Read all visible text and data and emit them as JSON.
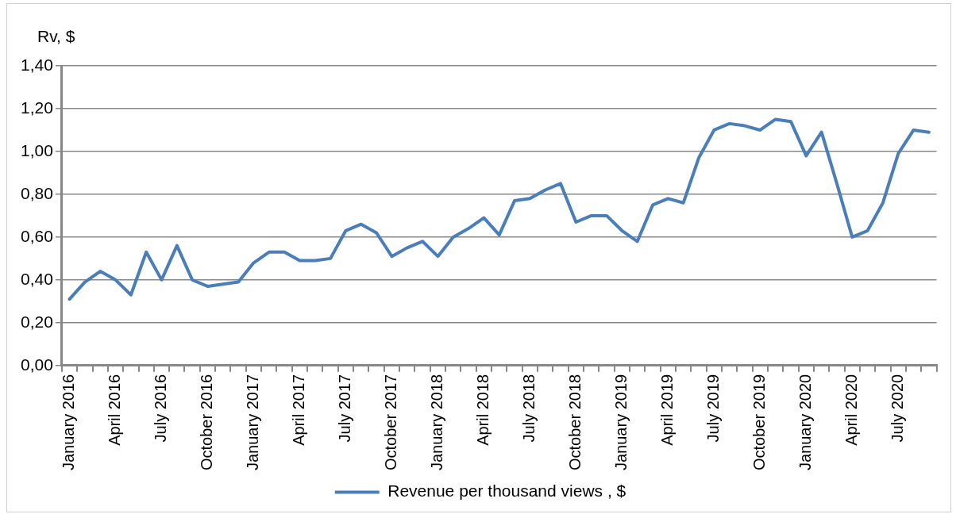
{
  "chart_data": {
    "type": "line",
    "ylabel": "Rv, $",
    "categories": [
      "January 2016",
      null,
      null,
      "April 2016",
      null,
      null,
      "July 2016",
      null,
      null,
      "October 2016",
      null,
      null,
      "January 2017",
      null,
      null,
      "April 2017",
      null,
      null,
      "July 2017",
      null,
      null,
      "October 2017",
      null,
      null,
      "January 2018",
      null,
      null,
      "April 2018",
      null,
      null,
      "July 2018",
      null,
      null,
      "October 2018",
      null,
      null,
      "January 2019",
      null,
      null,
      "April 2019",
      null,
      null,
      "July 2019",
      null,
      null,
      "October 2019",
      null,
      null,
      "January 2020",
      null,
      null,
      "April 2020",
      null,
      null,
      "July 2020",
      null,
      null
    ],
    "series": [
      {
        "name": "Revenue per thousand views , $",
        "color": "#4a7ebb",
        "values": [
          0.31,
          0.39,
          0.44,
          0.4,
          0.33,
          0.53,
          0.4,
          0.56,
          0.4,
          0.37,
          0.38,
          0.39,
          0.48,
          0.53,
          0.53,
          0.49,
          0.49,
          0.5,
          0.63,
          0.66,
          0.62,
          0.51,
          0.55,
          0.58,
          0.51,
          0.6,
          0.64,
          0.69,
          0.61,
          0.77,
          0.78,
          0.82,
          0.85,
          0.67,
          0.7,
          0.7,
          0.63,
          0.58,
          0.75,
          0.78,
          0.76,
          0.97,
          1.1,
          1.13,
          1.12,
          1.1,
          1.15,
          1.14,
          0.98,
          1.09,
          0.85,
          0.6,
          0.63,
          0.76,
          0.99,
          1.1,
          1.09
        ]
      }
    ],
    "ylim": [
      0,
      1.4
    ],
    "yticks": [
      {
        "value": 0,
        "label": "0,00"
      },
      {
        "value": 0.2,
        "label": "0,20"
      },
      {
        "value": 0.4,
        "label": "0,40"
      },
      {
        "value": 0.6,
        "label": "0,60"
      },
      {
        "value": 0.8,
        "label": "0,80"
      },
      {
        "value": 1.0,
        "label": "1,00"
      },
      {
        "value": 1.2,
        "label": "1,20"
      },
      {
        "value": 1.4,
        "label": "1,40"
      }
    ],
    "grid": "y",
    "legend": "bottom",
    "marker": "none",
    "line_style": "solid"
  }
}
